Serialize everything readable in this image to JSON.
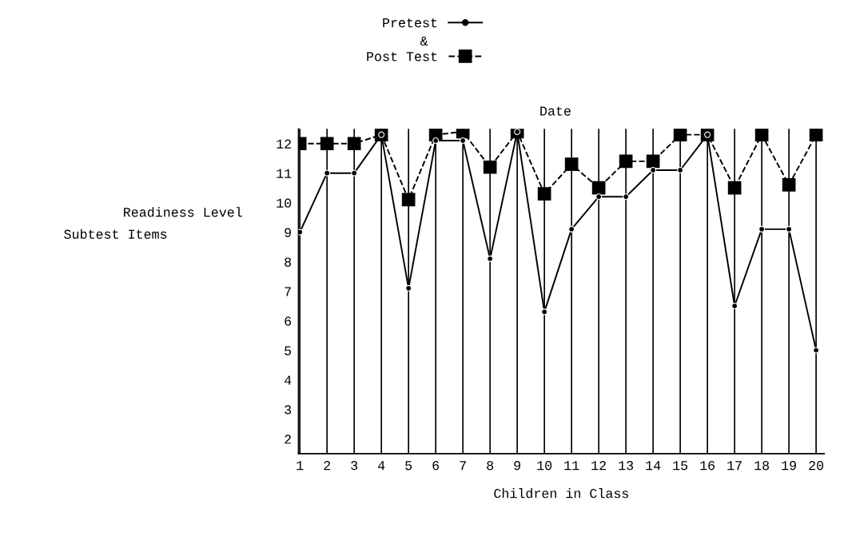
{
  "chart_data": {
    "type": "line",
    "categories": [
      "1",
      "2",
      "3",
      "4",
      "5",
      "6",
      "7",
      "8",
      "9",
      "10",
      "11",
      "12",
      "13",
      "14",
      "15",
      "16",
      "17",
      "18",
      "19",
      "20"
    ],
    "series": [
      {
        "name": "Pretest",
        "color": "#000000",
        "marker": "circle",
        "line_style": "solid",
        "values": [
          9,
          11,
          11,
          12.3,
          7.1,
          12.1,
          12.1,
          8.1,
          12.4,
          6.3,
          9.1,
          10.2,
          10.2,
          11.1,
          11.1,
          12.3,
          6.5,
          9.1,
          9.1,
          5
        ]
      },
      {
        "name": "Post Test",
        "color": "#000000",
        "marker": "square",
        "line_style": "dashed",
        "values": [
          12,
          12,
          12,
          12.3,
          10.1,
          12.3,
          12.4,
          11.2,
          12.4,
          10.3,
          11.3,
          10.5,
          11.4,
          11.4,
          12.3,
          12.3,
          10.5,
          12.3,
          10.6,
          12.3
        ]
      }
    ],
    "ylim": [
      1.5,
      12.5
    ],
    "yticks": [
      2,
      3,
      4,
      5,
      6,
      7,
      8,
      9,
      10,
      11,
      12
    ],
    "xlabel": "Children in Class",
    "ylabel": "Readiness Level",
    "annotations": [
      "&",
      "Date",
      "Subtest Items"
    ],
    "grid": "x",
    "legend": "top"
  }
}
